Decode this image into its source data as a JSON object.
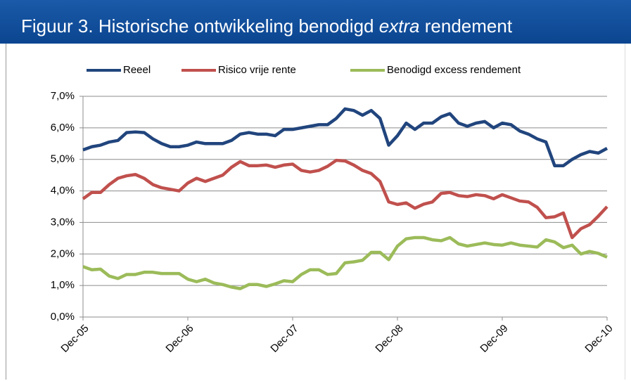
{
  "chart_data": {
    "type": "line",
    "title": [
      "Figuur 3. Historische ontwikkeling benodigd ",
      "extra",
      " rendement"
    ],
    "categories": [
      "Dec-05",
      null,
      null,
      null,
      null,
      null,
      null,
      null,
      null,
      null,
      null,
      null,
      "Dec-06",
      null,
      null,
      null,
      null,
      null,
      null,
      null,
      null,
      null,
      null,
      null,
      "Dec-07",
      null,
      null,
      null,
      null,
      null,
      null,
      null,
      null,
      null,
      null,
      null,
      "Dec-08",
      null,
      null,
      null,
      null,
      null,
      null,
      null,
      null,
      null,
      null,
      null,
      "Dec-09",
      null,
      null,
      null,
      null,
      null,
      null,
      null,
      null,
      null,
      null,
      null,
      "Dec-10"
    ],
    "series": [
      {
        "name": "Reeel",
        "color": "#21457d",
        "values": [
          5.3,
          5.4,
          5.45,
          5.55,
          5.6,
          5.85,
          5.87,
          5.85,
          5.65,
          5.5,
          5.4,
          5.4,
          5.45,
          5.55,
          5.5,
          5.5,
          5.5,
          5.6,
          5.8,
          5.85,
          5.8,
          5.8,
          5.75,
          5.95,
          5.95,
          6.0,
          6.05,
          6.1,
          6.1,
          6.3,
          6.6,
          6.55,
          6.4,
          6.55,
          6.3,
          5.45,
          5.75,
          6.15,
          5.95,
          6.15,
          6.15,
          6.35,
          6.45,
          6.15,
          6.05,
          6.15,
          6.2,
          6.0,
          6.15,
          6.1,
          5.9,
          5.8,
          5.65,
          5.55,
          4.8,
          4.8,
          5.0,
          5.15,
          5.25,
          5.2,
          5.35
        ]
      },
      {
        "name": "Risico vrije rente",
        "color": "#c0504d",
        "values": [
          3.75,
          3.95,
          3.95,
          4.2,
          4.4,
          4.48,
          4.52,
          4.4,
          4.2,
          4.1,
          4.05,
          4.0,
          4.25,
          4.4,
          4.3,
          4.4,
          4.5,
          4.75,
          4.93,
          4.8,
          4.8,
          4.82,
          4.75,
          4.82,
          4.85,
          4.65,
          4.6,
          4.65,
          4.78,
          4.97,
          4.95,
          4.82,
          4.65,
          4.55,
          4.3,
          3.65,
          3.57,
          3.62,
          3.45,
          3.58,
          3.65,
          3.92,
          3.95,
          3.85,
          3.82,
          3.88,
          3.85,
          3.75,
          3.88,
          3.78,
          3.68,
          3.65,
          3.48,
          3.15,
          3.18,
          3.3,
          2.52,
          2.8,
          2.93,
          3.2,
          3.5
        ]
      },
      {
        "name": "Benodigd excess rendement",
        "color": "#9bbb59",
        "values": [
          1.6,
          1.5,
          1.52,
          1.3,
          1.22,
          1.35,
          1.35,
          1.42,
          1.42,
          1.38,
          1.38,
          1.38,
          1.2,
          1.12,
          1.2,
          1.08,
          1.03,
          0.95,
          0.9,
          1.03,
          1.03,
          0.97,
          1.05,
          1.15,
          1.12,
          1.35,
          1.5,
          1.5,
          1.35,
          1.38,
          1.72,
          1.75,
          1.8,
          2.05,
          2.05,
          1.82,
          2.25,
          2.48,
          2.52,
          2.52,
          2.45,
          2.42,
          2.52,
          2.32,
          2.25,
          2.3,
          2.35,
          2.3,
          2.28,
          2.35,
          2.28,
          2.25,
          2.22,
          2.45,
          2.38,
          2.2,
          2.28,
          2.0,
          2.08,
          2.02,
          1.9
        ]
      }
    ],
    "ylim": [
      0,
      7
    ],
    "yticks": [
      {
        "value": 0,
        "label": "0,0%"
      },
      {
        "value": 1,
        "label": "1,0%"
      },
      {
        "value": 2,
        "label": "2,0%"
      },
      {
        "value": 3,
        "label": "3,0%"
      },
      {
        "value": 4,
        "label": "4,0%"
      },
      {
        "value": 5,
        "label": "5,0%"
      },
      {
        "value": 6,
        "label": "6,0%"
      },
      {
        "value": 7,
        "label": "7,0%"
      }
    ],
    "grid": true,
    "legend": "top"
  }
}
